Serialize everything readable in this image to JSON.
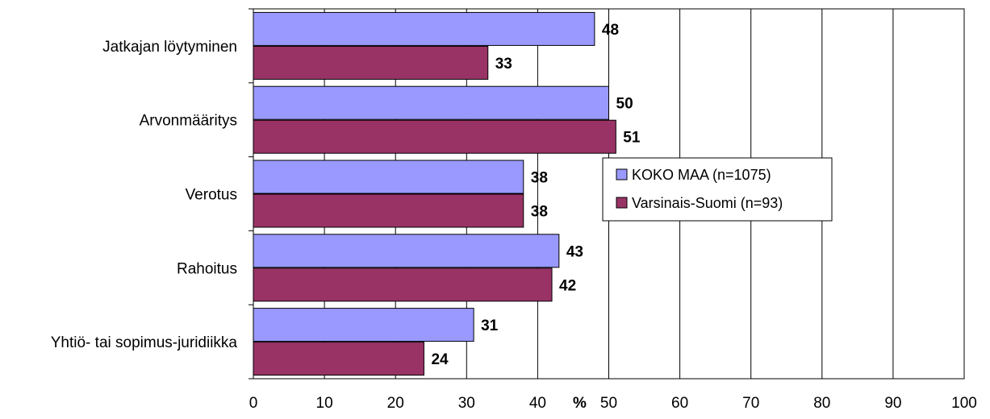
{
  "chart_data": {
    "type": "bar",
    "orientation": "horizontal",
    "categories": [
      "Jatkajan löytyminen",
      "Arvonmääritys",
      "Verotus",
      "Rahoitus",
      "Yhtiö- tai sopimus-juridiikka"
    ],
    "series": [
      {
        "name": "KOKO MAA (n=1075)",
        "values": [
          48,
          50,
          38,
          43,
          31
        ],
        "color": "#9999ff"
      },
      {
        "name": "Varsinais-Suomi (n=93)",
        "values": [
          33,
          51,
          38,
          42,
          24
        ],
        "color": "#993366"
      }
    ],
    "xlabel": "%",
    "xlim": [
      0,
      100
    ],
    "xticks": [
      0,
      10,
      20,
      30,
      40,
      50,
      60,
      70,
      80,
      90,
      100
    ],
    "grid": true,
    "legend_position": "right-center",
    "data_labels": true
  }
}
